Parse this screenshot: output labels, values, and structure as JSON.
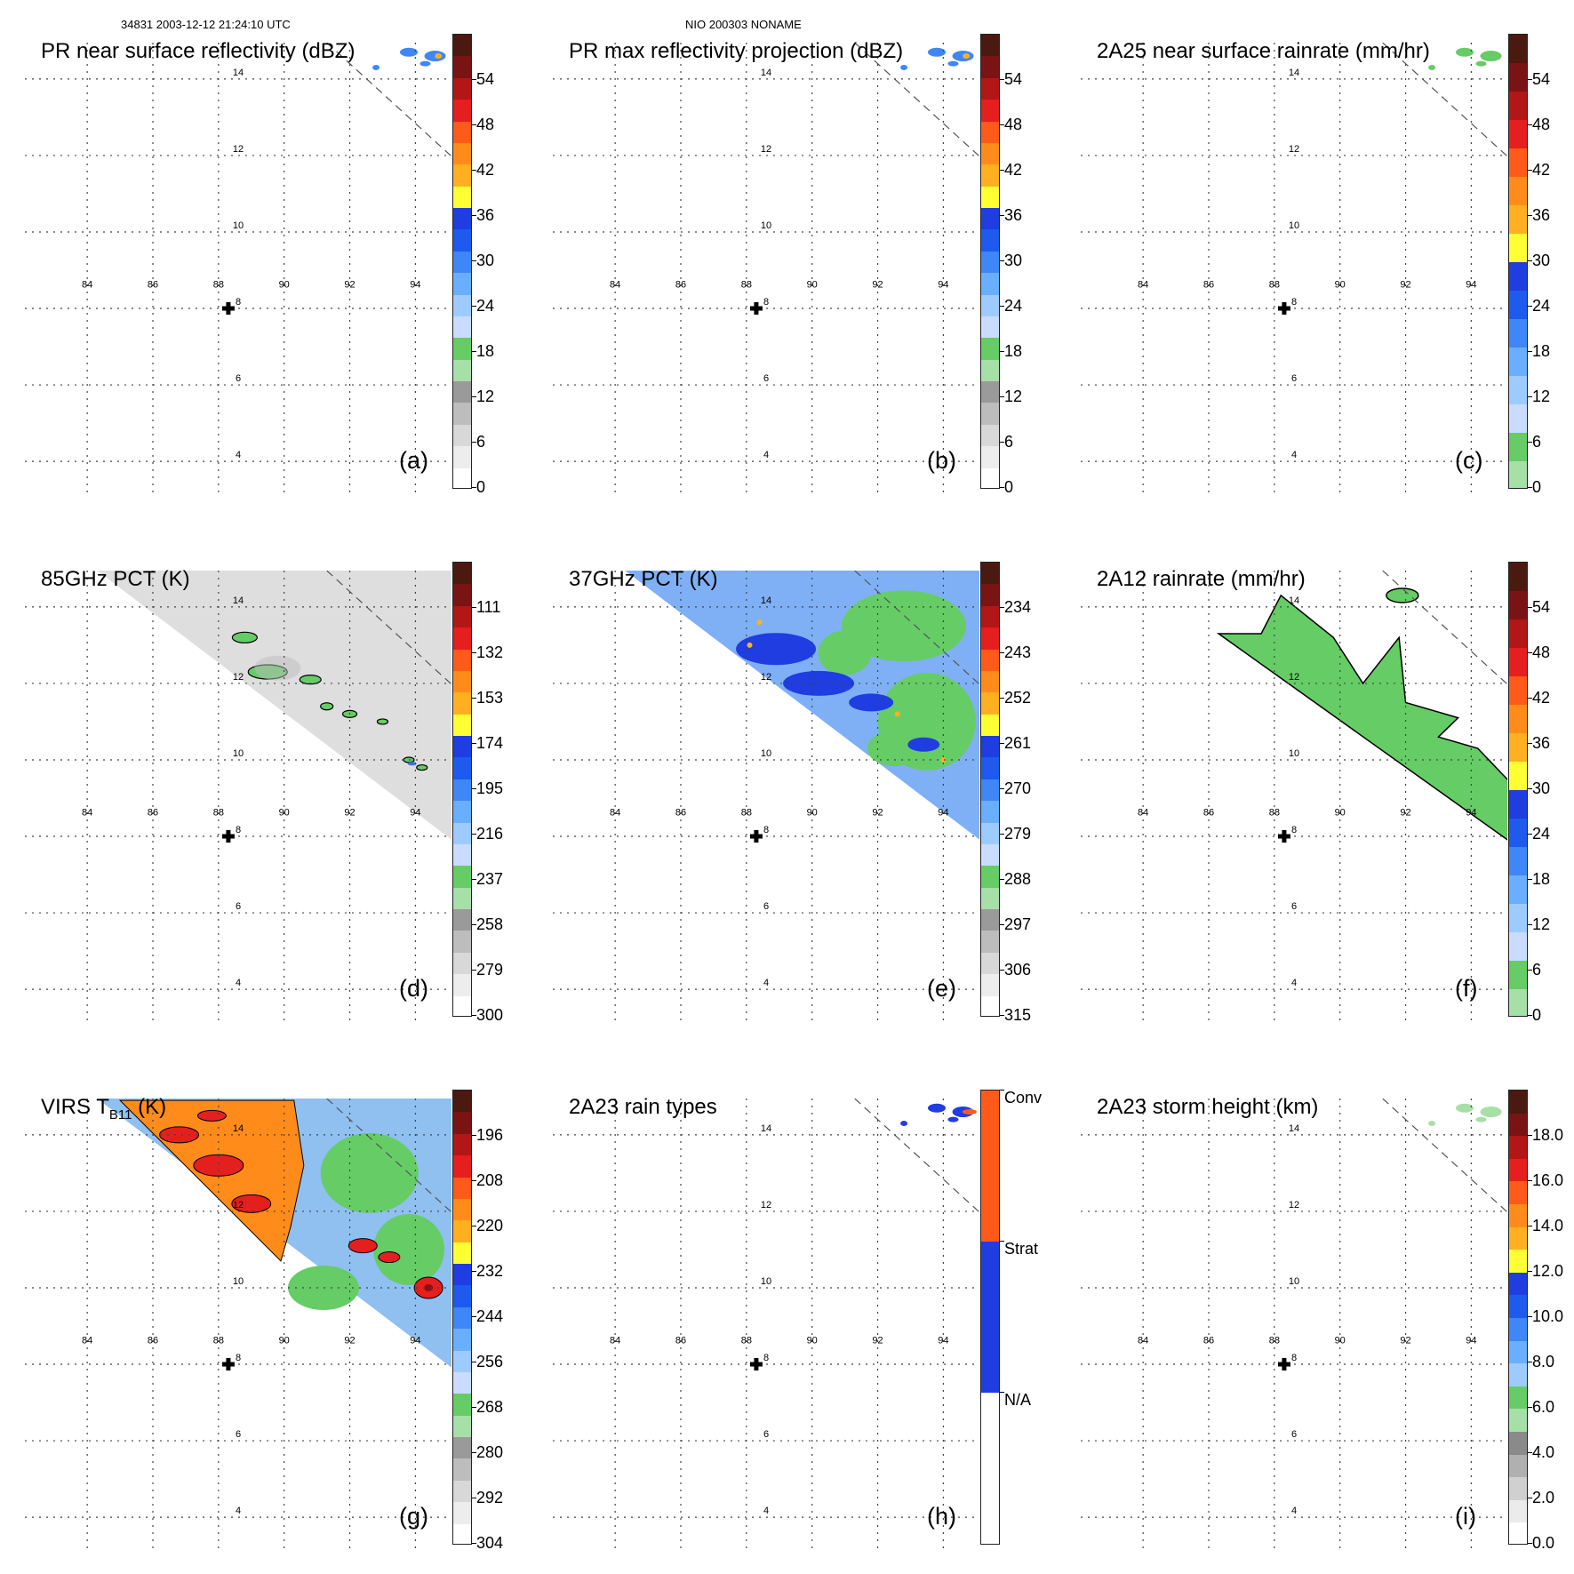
{
  "header": {
    "orbit_info": "34831 2003-12-12 21:24:10 UTC",
    "storm_info": "NIO 200303 NONAME"
  },
  "colors": {
    "grid": "#444444",
    "swath": "#555555",
    "green": "#66cc66",
    "lightgreen": "#a6e0a6",
    "lightblue": "#9ecbff",
    "blue_light": "#5aa0ff",
    "blue": "#1f3de0",
    "yellow": "#ffff33",
    "orange": "#ff8c1a",
    "red": "#e51e1e",
    "darkred": "#8b1010",
    "brown": "#4a1a10",
    "gray": "#b0b0b0"
  },
  "chart_data": [
    {
      "id": "a",
      "type": "heatmap",
      "title": "PR near surface reflectivity (dBZ)",
      "panel_label": "(a)",
      "colorbar_ticks": [
        "54",
        "48",
        "42",
        "36",
        "30",
        "24",
        "18",
        "12",
        "6",
        "0"
      ],
      "lon_ticks": [
        "84",
        "86",
        "88",
        "90",
        "92",
        "94"
      ],
      "lat_ticks": [
        "14",
        "12",
        "10",
        "8",
        "6",
        "4"
      ],
      "center_marker": {
        "lon": 88.3,
        "lat": 8.0
      },
      "swath": "pr"
    },
    {
      "id": "b",
      "type": "heatmap",
      "title": "PR max reflectivity projection (dBZ)",
      "panel_label": "(b)",
      "colorbar_ticks": [
        "54",
        "48",
        "42",
        "36",
        "30",
        "24",
        "18",
        "12",
        "6",
        "0"
      ],
      "lon_ticks": [
        "84",
        "86",
        "88",
        "90",
        "92",
        "94"
      ],
      "lat_ticks": [
        "14",
        "12",
        "10",
        "8",
        "6",
        "4"
      ],
      "center_marker": {
        "lon": 88.3,
        "lat": 8.0
      },
      "swath": "pr"
    },
    {
      "id": "c",
      "type": "heatmap",
      "title": "2A25 near surface rainrate (mm/hr)",
      "panel_label": "(c)",
      "colorbar_ticks": [
        "54",
        "48",
        "42",
        "36",
        "30",
        "24",
        "18",
        "12",
        "6",
        "0"
      ],
      "lon_ticks": [
        "84",
        "86",
        "88",
        "90",
        "92",
        "94"
      ],
      "lat_ticks": [
        "14",
        "12",
        "10",
        "8",
        "6",
        "4"
      ],
      "center_marker": {
        "lon": 88.3,
        "lat": 8.0
      },
      "swath": "pr"
    },
    {
      "id": "d",
      "type": "heatmap",
      "title": "85GHz PCT (K)",
      "panel_label": "(d)",
      "colorbar_ticks": [
        "111",
        "132",
        "153",
        "174",
        "195",
        "216",
        "237",
        "258",
        "279",
        "300"
      ],
      "lon_ticks": [
        "84",
        "86",
        "88",
        "90",
        "92",
        "94"
      ],
      "lat_ticks": [
        "14",
        "12",
        "10",
        "8",
        "6",
        "4"
      ],
      "center_marker": {
        "lon": 88.3,
        "lat": 8.0
      },
      "swath": "tmi"
    },
    {
      "id": "e",
      "type": "heatmap",
      "title": "37GHz PCT (K)",
      "panel_label": "(e)",
      "colorbar_ticks": [
        "234",
        "243",
        "252",
        "261",
        "270",
        "279",
        "288",
        "297",
        "306",
        "315"
      ],
      "lon_ticks": [
        "84",
        "86",
        "88",
        "90",
        "92",
        "94"
      ],
      "lat_ticks": [
        "14",
        "12",
        "10",
        "8",
        "6",
        "4"
      ],
      "center_marker": {
        "lon": 88.3,
        "lat": 8.0
      },
      "swath": "tmi37"
    },
    {
      "id": "f",
      "type": "heatmap",
      "title": "2A12 rainrate (mm/hr)",
      "panel_label": "(f)",
      "colorbar_ticks": [
        "54",
        "48",
        "42",
        "36",
        "30",
        "24",
        "18",
        "12",
        "6",
        "0"
      ],
      "lon_ticks": [
        "84",
        "86",
        "88",
        "90",
        "92",
        "94"
      ],
      "lat_ticks": [
        "14",
        "12",
        "10",
        "8",
        "6",
        "4"
      ],
      "center_marker": {
        "lon": 88.3,
        "lat": 8.0
      },
      "swath": "tmirain"
    },
    {
      "id": "g",
      "type": "heatmap",
      "title": "VIRS T",
      "title_sub": "B11",
      "title_tail": " (K)",
      "panel_label": "(g)",
      "colorbar_ticks": [
        "196",
        "208",
        "220",
        "232",
        "244",
        "256",
        "268",
        "280",
        "292",
        "304"
      ],
      "lon_ticks": [
        "84",
        "86",
        "88",
        "90",
        "92",
        "94"
      ],
      "lat_ticks": [
        "14",
        "12",
        "10",
        "8",
        "6",
        "4"
      ],
      "center_marker": {
        "lon": 88.3,
        "lat": 8.0
      },
      "swath": "virs"
    },
    {
      "id": "h",
      "type": "heatmap",
      "title": "2A23 rain types",
      "panel_label": "(h)",
      "colorbar_ticks": [
        "Conv",
        "Strat",
        "N/A"
      ],
      "lon_ticks": [
        "84",
        "86",
        "88",
        "90",
        "92",
        "94"
      ],
      "lat_ticks": [
        "14",
        "12",
        "10",
        "8",
        "6",
        "4"
      ],
      "center_marker": {
        "lon": 88.3,
        "lat": 8.0
      },
      "swath": "pr"
    },
    {
      "id": "i",
      "type": "heatmap",
      "title": "2A23 storm height (km)",
      "panel_label": "(i)",
      "colorbar_ticks": [
        "18.0",
        "16.0",
        "14.0",
        "12.0",
        "10.0",
        "8.0",
        "6.0",
        "4.0",
        "2.0",
        "0.0"
      ],
      "lon_ticks": [
        "84",
        "86",
        "88",
        "90",
        "92",
        "94"
      ],
      "lat_ticks": [
        "14",
        "12",
        "10",
        "8",
        "6",
        "4"
      ],
      "center_marker": {
        "lon": 88.3,
        "lat": 8.0
      },
      "swath": "pr"
    }
  ]
}
